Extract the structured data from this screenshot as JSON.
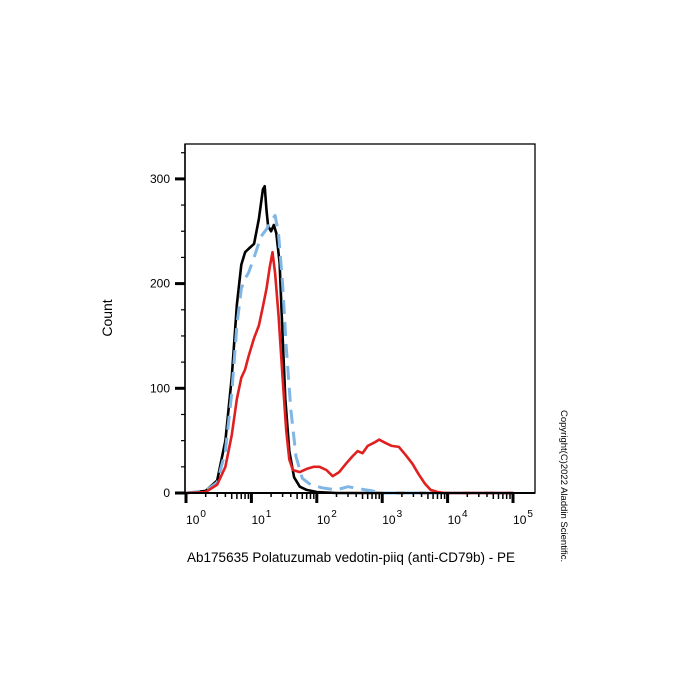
{
  "chart_data": {
    "type": "line",
    "title": "",
    "xlabel": "Ab175635 Polatuzumab vedotin-piiq (anti-CD79b) - PE",
    "ylabel": "Count",
    "xscale": "log",
    "xlim": [
      1,
      100000
    ],
    "ylim": [
      0,
      330
    ],
    "x_ticks": [
      {
        "exp": 0,
        "base": "10",
        "sup": "0"
      },
      {
        "exp": 1,
        "base": "10",
        "sup": "1"
      },
      {
        "exp": 2,
        "base": "10",
        "sup": "2"
      },
      {
        "exp": 3,
        "base": "10",
        "sup": "3"
      },
      {
        "exp": 4,
        "base": "10",
        "sup": "4"
      },
      {
        "exp": 5,
        "base": "10",
        "sup": "5"
      }
    ],
    "y_ticks": [
      0,
      100,
      200,
      300
    ],
    "grid": false,
    "legend": null,
    "series": [
      {
        "name": "black-histogram",
        "color": "#000000",
        "dash": "none",
        "points": [
          [
            1.0,
            0
          ],
          [
            2.0,
            2
          ],
          [
            3.0,
            12
          ],
          [
            4.0,
            50
          ],
          [
            5.0,
            110
          ],
          [
            6.0,
            180
          ],
          [
            7.0,
            218
          ],
          [
            8.0,
            230
          ],
          [
            9.0,
            233
          ],
          [
            11,
            238
          ],
          [
            13,
            262
          ],
          [
            15,
            290
          ],
          [
            16,
            293
          ],
          [
            17,
            270
          ],
          [
            18,
            255
          ],
          [
            20,
            250
          ],
          [
            22,
            256
          ],
          [
            24,
            248
          ],
          [
            27,
            220
          ],
          [
            30,
            150
          ],
          [
            33,
            90
          ],
          [
            38,
            40
          ],
          [
            45,
            15
          ],
          [
            55,
            6
          ],
          [
            70,
            3
          ],
          [
            100,
            1
          ],
          [
            200,
            0
          ],
          [
            1000,
            0
          ],
          [
            100000,
            0
          ]
        ]
      },
      {
        "name": "blue-dashed-histogram",
        "color": "#7fb6e6",
        "dash": "14,8",
        "points": [
          [
            1.0,
            0
          ],
          [
            2.0,
            2
          ],
          [
            3.0,
            10
          ],
          [
            4.0,
            40
          ],
          [
            5.0,
            95
          ],
          [
            6.0,
            160
          ],
          [
            7.0,
            195
          ],
          [
            8.0,
            205
          ],
          [
            9.0,
            210
          ],
          [
            11,
            225
          ],
          [
            14,
            245
          ],
          [
            17,
            252
          ],
          [
            20,
            260
          ],
          [
            23,
            265
          ],
          [
            26,
            248
          ],
          [
            30,
            200
          ],
          [
            34,
            140
          ],
          [
            40,
            80
          ],
          [
            48,
            35
          ],
          [
            60,
            14
          ],
          [
            80,
            8
          ],
          [
            120,
            5
          ],
          [
            200,
            3
          ],
          [
            300,
            6
          ],
          [
            450,
            4
          ],
          [
            700,
            2
          ],
          [
            1000,
            0
          ],
          [
            2000,
            0
          ],
          [
            100000,
            0
          ]
        ]
      },
      {
        "name": "red-histogram",
        "color": "#e02020",
        "dash": "none",
        "points": [
          [
            1.0,
            0
          ],
          [
            2.0,
            1
          ],
          [
            3.0,
            8
          ],
          [
            4.0,
            25
          ],
          [
            5.0,
            55
          ],
          [
            6.0,
            90
          ],
          [
            7.0,
            110
          ],
          [
            8.0,
            118
          ],
          [
            9.0,
            130
          ],
          [
            11,
            148
          ],
          [
            13,
            160
          ],
          [
            15,
            178
          ],
          [
            17,
            195
          ],
          [
            19,
            215
          ],
          [
            21,
            230
          ],
          [
            23,
            210
          ],
          [
            26,
            170
          ],
          [
            30,
            110
          ],
          [
            34,
            60
          ],
          [
            38,
            32
          ],
          [
            43,
            22
          ],
          [
            55,
            20
          ],
          [
            70,
            23
          ],
          [
            90,
            25
          ],
          [
            110,
            25
          ],
          [
            140,
            22
          ],
          [
            175,
            16
          ],
          [
            220,
            20
          ],
          [
            280,
            28
          ],
          [
            350,
            35
          ],
          [
            420,
            40
          ],
          [
            500,
            38
          ],
          [
            600,
            45
          ],
          [
            750,
            48
          ],
          [
            900,
            51
          ],
          [
            1100,
            48
          ],
          [
            1400,
            45
          ],
          [
            1800,
            44
          ],
          [
            2300,
            36
          ],
          [
            2900,
            28
          ],
          [
            3600,
            18
          ],
          [
            4500,
            9
          ],
          [
            5500,
            3
          ],
          [
            7000,
            1
          ],
          [
            9000,
            0
          ],
          [
            100000,
            0
          ]
        ]
      }
    ]
  },
  "annotations": {
    "copyright": "Copyright(C)2022 Aladdin Scientific."
  }
}
